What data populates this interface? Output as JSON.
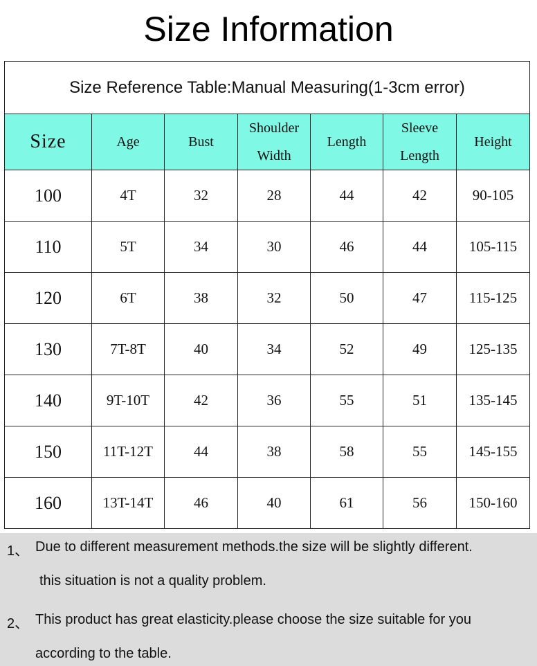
{
  "header": {
    "title": "Size Information"
  },
  "table": {
    "caption": "Size Reference Table:Manual Measuring(1-3cm error)",
    "columns": [
      "Size",
      "Age",
      "Bust",
      "Shoulder Width",
      "Length",
      "Sleeve Length",
      "Height"
    ],
    "rows": [
      [
        "100",
        "4T",
        "32",
        "28",
        "44",
        "42",
        "90-105"
      ],
      [
        "110",
        "5T",
        "34",
        "30",
        "46",
        "44",
        "105-115"
      ],
      [
        "120",
        "6T",
        "38",
        "32",
        "50",
        "47",
        "115-125"
      ],
      [
        "130",
        "7T-8T",
        "40",
        "34",
        "52",
        "49",
        "125-135"
      ],
      [
        "140",
        "9T-10T",
        "42",
        "36",
        "55",
        "51",
        "135-145"
      ],
      [
        "150",
        "11T-12T",
        "44",
        "38",
        "58",
        "55",
        "145-155"
      ],
      [
        "160",
        "13T-14T",
        "46",
        "40",
        "61",
        "56",
        "150-160"
      ]
    ]
  },
  "notes": [
    {
      "number": "1、",
      "lines": [
        "Due to different measurement methods.the size will be slightly different.",
        "this situation is not a quality problem."
      ]
    },
    {
      "number": "2、",
      "lines": [
        "This product has great elasticity.please choose the size suitable for you",
        "according to the table."
      ]
    }
  ]
}
